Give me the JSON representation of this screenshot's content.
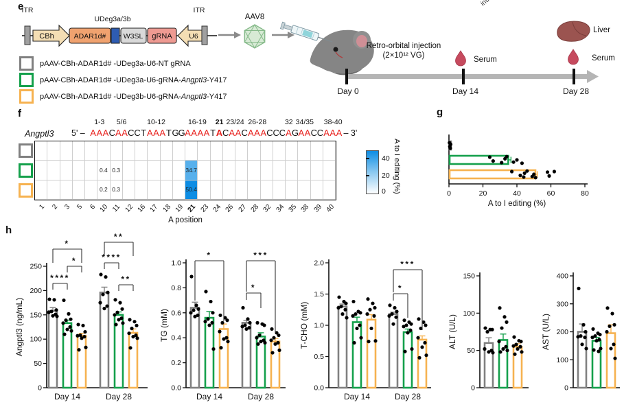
{
  "colors": {
    "series": [
      "#808080",
      "#14a04b",
      "#f6b250"
    ],
    "heat_hi": "#0d8de4",
    "seq_red": "#e8231f",
    "timeline_gray": "#b5b5b5"
  },
  "panel_e": {
    "label": "e",
    "top_fragment": "intr",
    "construct": {
      "itr_left": "ITR",
      "itr_right": "ITR",
      "cbh": "CBh",
      "adar": "ADAR1d#",
      "udeg": "UDeg3a/3b",
      "w3sl": "W3SL",
      "grna": "gRNA",
      "u6": "U6"
    },
    "legend": [
      {
        "color": "#808080",
        "pre": "pAAV-CBh-ADAR1d# -UDeg3a-U6-NT gRNA",
        "it": "",
        "post": ""
      },
      {
        "color": "#14a04b",
        "pre": "pAAV-CBh-ADAR1d# -UDeg3a-U6-gRNA-",
        "it": "Angptl3",
        "post": "-Y417"
      },
      {
        "color": "#f6b250",
        "pre": "pAAV-CBh-ADAR1d# -UDeg3b-U6-gRNA-",
        "it": "Angptl3",
        "post": "-Y417"
      }
    ],
    "aav8": "AAV8",
    "injection": [
      "Retro-orbital injection",
      "(2×10¹² VG)"
    ],
    "timeline": {
      "day0": "Day 0",
      "day14": "Day 14",
      "day28": "Day 28",
      "serum14": "Serum",
      "serum28": "Serum",
      "liver": "Liver"
    }
  },
  "panel_f": {
    "label": "f",
    "gene": "Angptl3",
    "prefix": "5' –",
    "suffix": "– 3'",
    "sequence": "AAACAACCTAAATGGAAAATACAACAAACCCAGAACCAAA",
    "bold_index": 20,
    "groups": [
      {
        "t": "1-3",
        "c": 1
      },
      {
        "t": "5/6",
        "c": 4.5
      },
      {
        "t": "10-12",
        "c": 10
      },
      {
        "t": "16-19",
        "c": 16.5
      },
      {
        "t": "21",
        "c": 20,
        "bold": true
      },
      {
        "t": "23/24",
        "c": 22.5
      },
      {
        "t": "26-28",
        "c": 26
      },
      {
        "t": "32",
        "c": 31
      },
      {
        "t": "34/35",
        "c": 33.5
      },
      {
        "t": "38-40",
        "c": 38
      }
    ]
  },
  "panel_g": {
    "label": "g"
  },
  "panel_h": {
    "label": "h"
  },
  "chart_data": [
    {
      "id": "editing-heatmap",
      "type": "heatmap",
      "xlabel": "A position",
      "positions": [
        "1",
        "2",
        "3",
        "5",
        "6",
        "10",
        "11",
        "12",
        "16",
        "17",
        "18",
        "19",
        "21",
        "23",
        "24",
        "26",
        "27",
        "28",
        "32",
        "34",
        "35",
        "38",
        "39",
        "40"
      ],
      "bold_position": "21",
      "rows": [
        {
          "name": "NT gRNA",
          "color": "#808080",
          "values": [
            null,
            null,
            null,
            null,
            null,
            null,
            null,
            null,
            null,
            null,
            null,
            null,
            null,
            null,
            null,
            null,
            null,
            null,
            null,
            null,
            null,
            null,
            null,
            null
          ]
        },
        {
          "name": "UDeg3a gRNA-Angptl3-Y417",
          "color": "#14a04b",
          "values": [
            null,
            null,
            null,
            null,
            null,
            0.4,
            0.3,
            null,
            null,
            null,
            null,
            null,
            34.7,
            null,
            null,
            null,
            null,
            null,
            null,
            null,
            null,
            null,
            null,
            null
          ]
        },
        {
          "name": "UDeg3b gRNA-Angptl3-Y417",
          "color": "#f6b250",
          "values": [
            null,
            null,
            null,
            null,
            null,
            0.2,
            0.3,
            null,
            null,
            null,
            null,
            null,
            50.4,
            null,
            null,
            null,
            null,
            null,
            null,
            null,
            null,
            null,
            null,
            null
          ]
        }
      ],
      "colorbar": {
        "ticks": [
          "0",
          "20",
          "40"
        ],
        "max": 50,
        "label": "A to I editing (%)"
      }
    },
    {
      "id": "editing-bars",
      "type": "bar-horizontal",
      "xlabel": "A to I editing (%)",
      "xmax": 80,
      "xticks": [
        "0",
        "20",
        "40",
        "60",
        "80"
      ],
      "series": [
        {
          "value": 0.8,
          "err": 0.4,
          "dots": [
            0.3,
            0.5,
            0.8,
            1.0
          ]
        },
        {
          "value": 34.5,
          "err": 2,
          "dots": [
            24,
            26,
            31,
            33,
            34,
            38,
            40,
            43
          ]
        },
        {
          "value": 50.5,
          "err": 1.5,
          "dots": [
            37,
            42,
            44,
            44.5,
            46,
            49,
            50,
            51,
            58,
            59,
            62
          ]
        }
      ]
    },
    {
      "id": "angptl3",
      "type": "bar",
      "ylabel": "Angptl3 (ng/mL)",
      "ymax": 250,
      "yticks": [
        {
          "v": 0,
          "t": "0"
        },
        {
          "v": 50,
          "t": "50"
        },
        {
          "v": 100,
          "t": "100"
        },
        {
          "v": 150,
          "t": "150"
        },
        {
          "v": 200,
          "t": "200"
        },
        {
          "v": 250,
          "t": "250"
        }
      ],
      "groups": [
        {
          "label": "Day 14",
          "values": [
            158,
            133,
            107
          ],
          "errs": [
            7,
            6,
            5
          ],
          "dots": [
            [
              182,
              181,
              160,
              157,
              155,
              151,
              148,
              147
            ],
            [
              180,
              152,
              141,
              139,
              133,
              125,
              120,
              117,
              110
            ],
            [
              130,
              128,
              115,
              108,
              107,
              105,
              102,
              83,
              78
            ]
          ]
        },
        {
          "label": "Day 28",
          "values": [
            196,
            150,
            113
          ],
          "errs": [
            11,
            6,
            8
          ],
          "dots": [
            [
              233,
              228,
              196,
              192,
              175,
              168,
              163
            ],
            [
              181,
              175,
              162,
              155,
              150,
              143,
              140,
              133,
              130
            ],
            [
              140,
              136,
              128,
              122,
              112,
              108,
              105,
              102,
              82
            ]
          ]
        }
      ],
      "sig": [
        {
          "g": 0,
          "a": 0,
          "b": 2,
          "stars": "*",
          "y": 25,
          "drop": [
            20,
            20
          ]
        },
        {
          "g": 0,
          "a": 1,
          "b": 2,
          "stars": "*",
          "y": 50,
          "drop": [
            9,
            9
          ]
        },
        {
          "g": 0,
          "a": 0,
          "b": 1,
          "stars": "****",
          "y": 75,
          "drop": [
            9,
            9
          ]
        },
        {
          "g": 1,
          "a": 0,
          "b": 2,
          "stars": "**",
          "y": 15,
          "drop": [
            20,
            20
          ]
        },
        {
          "g": 1,
          "a": 0,
          "b": 1,
          "stars": "****",
          "y": 45,
          "drop": [
            9,
            9
          ]
        },
        {
          "g": 1,
          "a": 1,
          "b": 2,
          "stars": "**",
          "y": 77,
          "drop": [
            9,
            9
          ]
        }
      ]
    },
    {
      "id": "tg",
      "type": "bar",
      "ylabel": "TG (mM)",
      "ymax": 1.0,
      "yticks": [
        {
          "v": 0,
          "t": "0.0"
        },
        {
          "v": 0.2,
          "t": "0.2"
        },
        {
          "v": 0.4,
          "t": "0.4"
        },
        {
          "v": 0.6,
          "t": "0.6"
        },
        {
          "v": 0.8,
          "t": "0.8"
        },
        {
          "v": 1.0,
          "t": "1.0"
        }
      ],
      "groups": [
        {
          "label": "Day 14",
          "values": [
            0.64,
            0.56,
            0.47
          ],
          "errs": [
            0.045,
            0.05,
            0.04
          ],
          "dots": [
            [
              0.89,
              0.66,
              0.63,
              0.62,
              0.6,
              0.58,
              0.57
            ],
            [
              0.77,
              0.69,
              0.6,
              0.55,
              0.53,
              0.52,
              0.5,
              0.31
            ],
            [
              0.58,
              0.56,
              0.54,
              0.52,
              0.45,
              0.4,
              0.39,
              0.37,
              0.32
            ]
          ]
        },
        {
          "label": "Day 28",
          "values": [
            0.52,
            0.41,
            0.37
          ],
          "errs": [
            0.02,
            0.03,
            0.025
          ],
          "dots": [
            [
              0.64,
              0.55,
              0.52,
              0.5,
              0.49,
              0.48,
              0.47
            ],
            [
              0.52,
              0.51,
              0.5,
              0.42,
              0.4,
              0.38,
              0.37,
              0.36,
              0.35
            ],
            [
              0.47,
              0.44,
              0.42,
              0.4,
              0.38,
              0.36,
              0.35,
              0.3,
              0.28
            ]
          ]
        }
      ],
      "sig": [
        {
          "g": 0,
          "a": 0,
          "b": 2,
          "stars": "*",
          "y": 42,
          "drop": [
            58,
            88
          ]
        },
        {
          "g": 1,
          "a": 0,
          "b": 2,
          "stars": "***",
          "y": 42,
          "drop": [
            45,
            105
          ]
        },
        {
          "g": 1,
          "a": 0,
          "b": 1,
          "stars": "*",
          "y": 89,
          "drop": [
            10,
            22
          ]
        }
      ]
    },
    {
      "id": "tcho",
      "type": "bar",
      "ylabel": "T-CHO (mM)",
      "ymax": 2.0,
      "yticks": [
        {
          "v": 0,
          "t": "0.0"
        },
        {
          "v": 0.5,
          "t": "0.5"
        },
        {
          "v": 1.0,
          "t": "1.0"
        },
        {
          "v": 1.5,
          "t": "1.5"
        },
        {
          "v": 2.0,
          "t": "2.0"
        }
      ],
      "groups": [
        {
          "label": "Day 14",
          "values": [
            1.3,
            1.05,
            1.09
          ],
          "errs": [
            0.04,
            0.08,
            0.08
          ],
          "dots": [
            [
              1.45,
              1.38,
              1.35,
              1.3,
              1.28,
              1.25,
              1.18,
              1.12
            ],
            [
              1.38,
              1.22,
              1.2,
              1.18,
              1.15,
              1.0,
              0.95,
              0.8,
              0.72
            ],
            [
              1.42,
              1.35,
              1.28,
              1.25,
              1.18,
              1.15,
              0.95,
              0.75,
              0.74
            ]
          ]
        },
        {
          "label": "Day 28",
          "values": [
            1.18,
            0.89,
            0.77
          ],
          "errs": [
            0.03,
            0.05,
            0.06
          ],
          "dots": [
            [
              1.32,
              1.28,
              1.22,
              1.18,
              1.15,
              1.13,
              1.02
            ],
            [
              1.08,
              1.05,
              1.02,
              1.0,
              0.98,
              0.92,
              0.88,
              0.62,
              0.58
            ],
            [
              1.1,
              1.05,
              1.0,
              0.95,
              0.8,
              0.72,
              0.65,
              0.52,
              0.48
            ]
          ]
        }
      ],
      "sig": [
        {
          "g": 1,
          "a": 0,
          "b": 2,
          "stars": "***",
          "y": 55,
          "drop": [
            33,
            88
          ]
        },
        {
          "g": 1,
          "a": 0,
          "b": 1,
          "stars": "*",
          "y": 90,
          "drop": [
            10,
            35
          ]
        }
      ]
    },
    {
      "id": "alt",
      "type": "bar",
      "ylabel": "ALT (U/L)",
      "ymax": 150,
      "yticks": [
        {
          "v": 0,
          "t": "0"
        },
        {
          "v": 50,
          "t": "50"
        },
        {
          "v": 100,
          "t": "100"
        },
        {
          "v": 150,
          "t": "150"
        }
      ],
      "groups": [
        {
          "label": "",
          "values": [
            60,
            64,
            55
          ],
          "errs": [
            7,
            8,
            4
          ],
          "dots": [
            [
              80,
              78,
              78,
              75,
              52,
              50,
              48,
              47
            ],
            [
              107,
              95,
              88,
              80,
              62,
              55,
              52,
              50,
              48
            ],
            [
              68,
              63,
              62,
              58,
              56,
              55,
              52,
              48,
              45
            ]
          ]
        }
      ],
      "sig": []
    },
    {
      "id": "ast",
      "type": "bar",
      "ylabel": "AST (U/L)",
      "ymax": 400,
      "yticks": [
        {
          "v": 0,
          "t": "0"
        },
        {
          "v": 100,
          "t": "100"
        },
        {
          "v": 200,
          "t": "200"
        },
        {
          "v": 300,
          "t": "300"
        },
        {
          "v": 400,
          "t": "400"
        }
      ],
      "groups": [
        {
          "label": "",
          "values": [
            200,
            168,
            195
          ],
          "errs": [
            28,
            12,
            30
          ],
          "dots": [
            [
              355,
              225,
              200,
              185,
              182,
              180,
              155,
              140
            ],
            [
              210,
              195,
              190,
              185,
              180,
              172,
              168,
              140,
              135,
              130
            ],
            [
              285,
              265,
              225,
              220,
              200,
              155,
              140,
              105
            ]
          ]
        }
      ],
      "sig": []
    }
  ]
}
